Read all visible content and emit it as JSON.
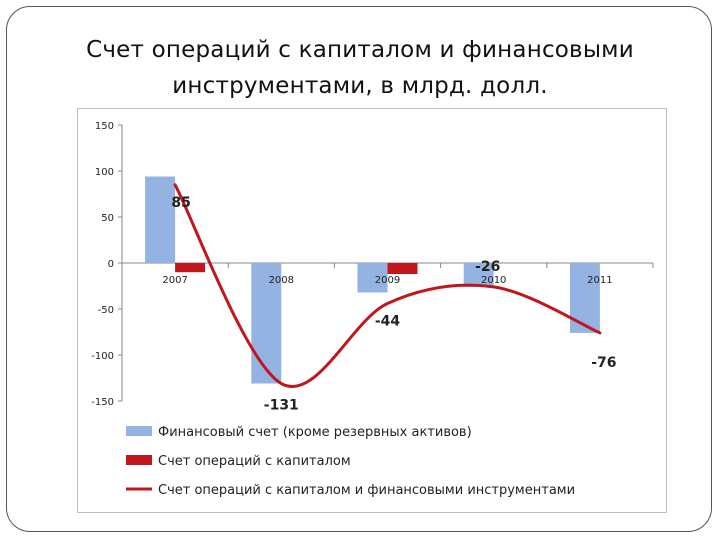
{
  "title": "Счет операций с капиталом и финансовыми инструментами, в млрд. долл.",
  "chart_data": {
    "type": "bar",
    "categories": [
      "2007",
      "2008",
      "2009",
      "2010",
      "2011"
    ],
    "ylim": [
      -150,
      150
    ],
    "yticks": [
      150,
      100,
      50,
      0,
      -50,
      -100,
      -150
    ],
    "grid": false,
    "legend_position": "bottom",
    "series": [
      {
        "name": "Финансовый счет (кроме резервных активов)",
        "type": "bar",
        "color": "#95b3e2",
        "values": [
          94,
          -131,
          -32,
          -26,
          -76
        ]
      },
      {
        "name": "Счет операций с капиталом",
        "type": "bar",
        "color": "#c0161c",
        "values": [
          -10,
          0,
          -12,
          0,
          0
        ]
      },
      {
        "name": "Счет операций с капиталом и финансовыми инструментами",
        "type": "line",
        "color": "#c0161c",
        "values": [
          85,
          -131,
          -44,
          -26,
          -76
        ],
        "labels": [
          "85",
          "-131",
          "-44",
          "-26",
          "-76"
        ]
      }
    ]
  }
}
